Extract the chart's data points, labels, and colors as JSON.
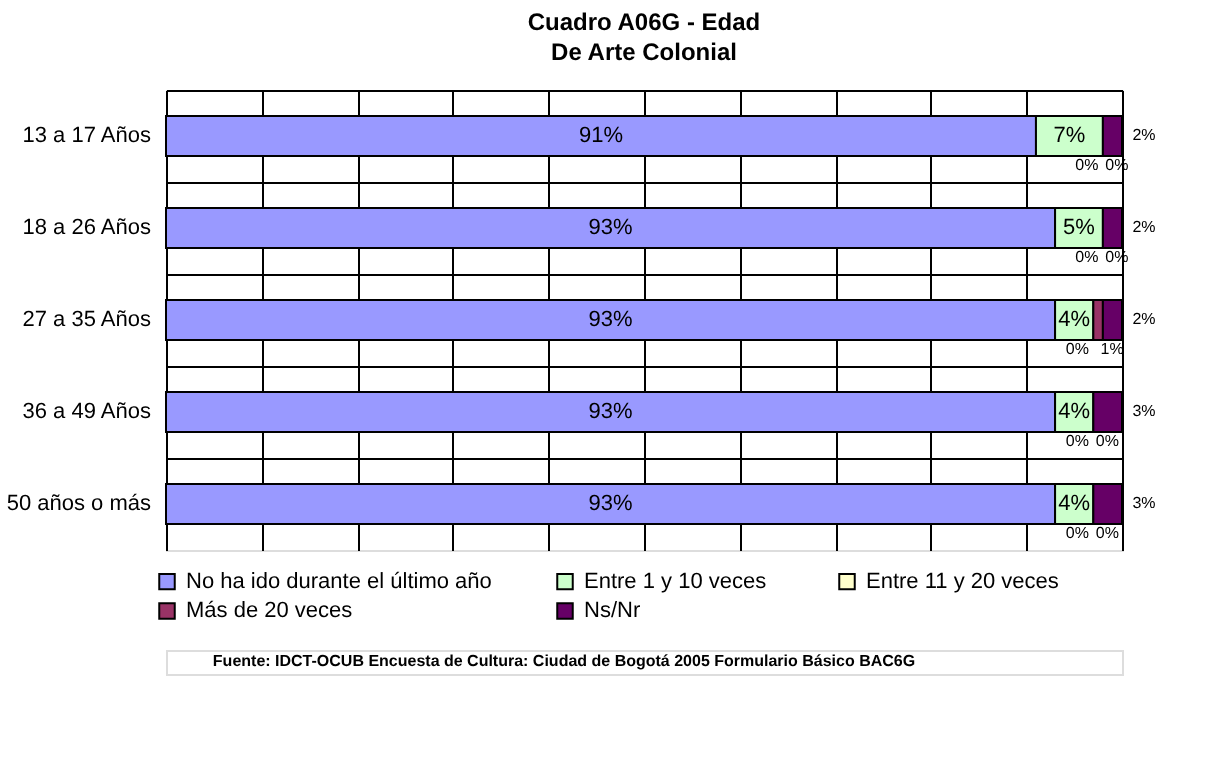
{
  "chart_data": {
    "type": "bar",
    "orientation": "horizontal",
    "stacked": true,
    "title": "Cuadro A06G - Edad",
    "subtitle": "De Arte Colonial",
    "categories": [
      "13 a 17 Años",
      "18 a 26 Años",
      "27 a 35 Años",
      "36 a 49 Años",
      "50 años o más"
    ],
    "series": [
      {
        "name": "No ha ido durante el último año",
        "color": "#9999ff",
        "values": [
          91,
          93,
          93,
          93,
          93
        ],
        "value_labels": [
          "91%",
          "93%",
          "93%",
          "93%",
          "93%"
        ]
      },
      {
        "name": "Entre 1 y  10 veces",
        "color": "#ccffcc",
        "values": [
          7,
          5,
          4,
          4,
          4
        ],
        "value_labels": [
          "7%",
          "5%",
          "4%",
          "4%",
          "4%"
        ]
      },
      {
        "name": "Entre 11 y  20 veces",
        "color": "#ffffcc",
        "values": [
          0,
          0,
          0,
          0,
          0
        ],
        "value_labels": [
          "0%",
          "0%",
          "0%",
          "0%",
          "0%"
        ]
      },
      {
        "name": "Más de 20 veces",
        "color": "#993366",
        "values": [
          0,
          0,
          1,
          0,
          0
        ],
        "value_labels": [
          "0%",
          "0%",
          "1%",
          "0%",
          "0%"
        ]
      },
      {
        "name": "Ns/Nr",
        "color": "#660066",
        "values": [
          2,
          2,
          2,
          3,
          3
        ],
        "value_labels": [
          "2%",
          "2%",
          "2%",
          "3%",
          "3%"
        ]
      }
    ],
    "xlim": [
      0,
      100
    ],
    "xticks": [
      {
        "value": 0,
        "label": null
      },
      {
        "value": 10,
        "label": null
      },
      {
        "value": 20,
        "label": null
      },
      {
        "value": 30,
        "label": null
      },
      {
        "value": 40,
        "label": null
      },
      {
        "value": 50,
        "label": null
      },
      {
        "value": 60,
        "label": null
      },
      {
        "value": 70,
        "label": null
      },
      {
        "value": 80,
        "label": null
      },
      {
        "value": 90,
        "label": null
      },
      {
        "value": 100,
        "label": null
      }
    ],
    "tick_labels": "y",
    "grid": true,
    "legend": "bottom",
    "annotations": [
      "Fuente: IDCT-OCUB Encuesta de Cultura: Ciudad de Bogotá 2005 Formulario Básico BAC6G"
    ]
  }
}
